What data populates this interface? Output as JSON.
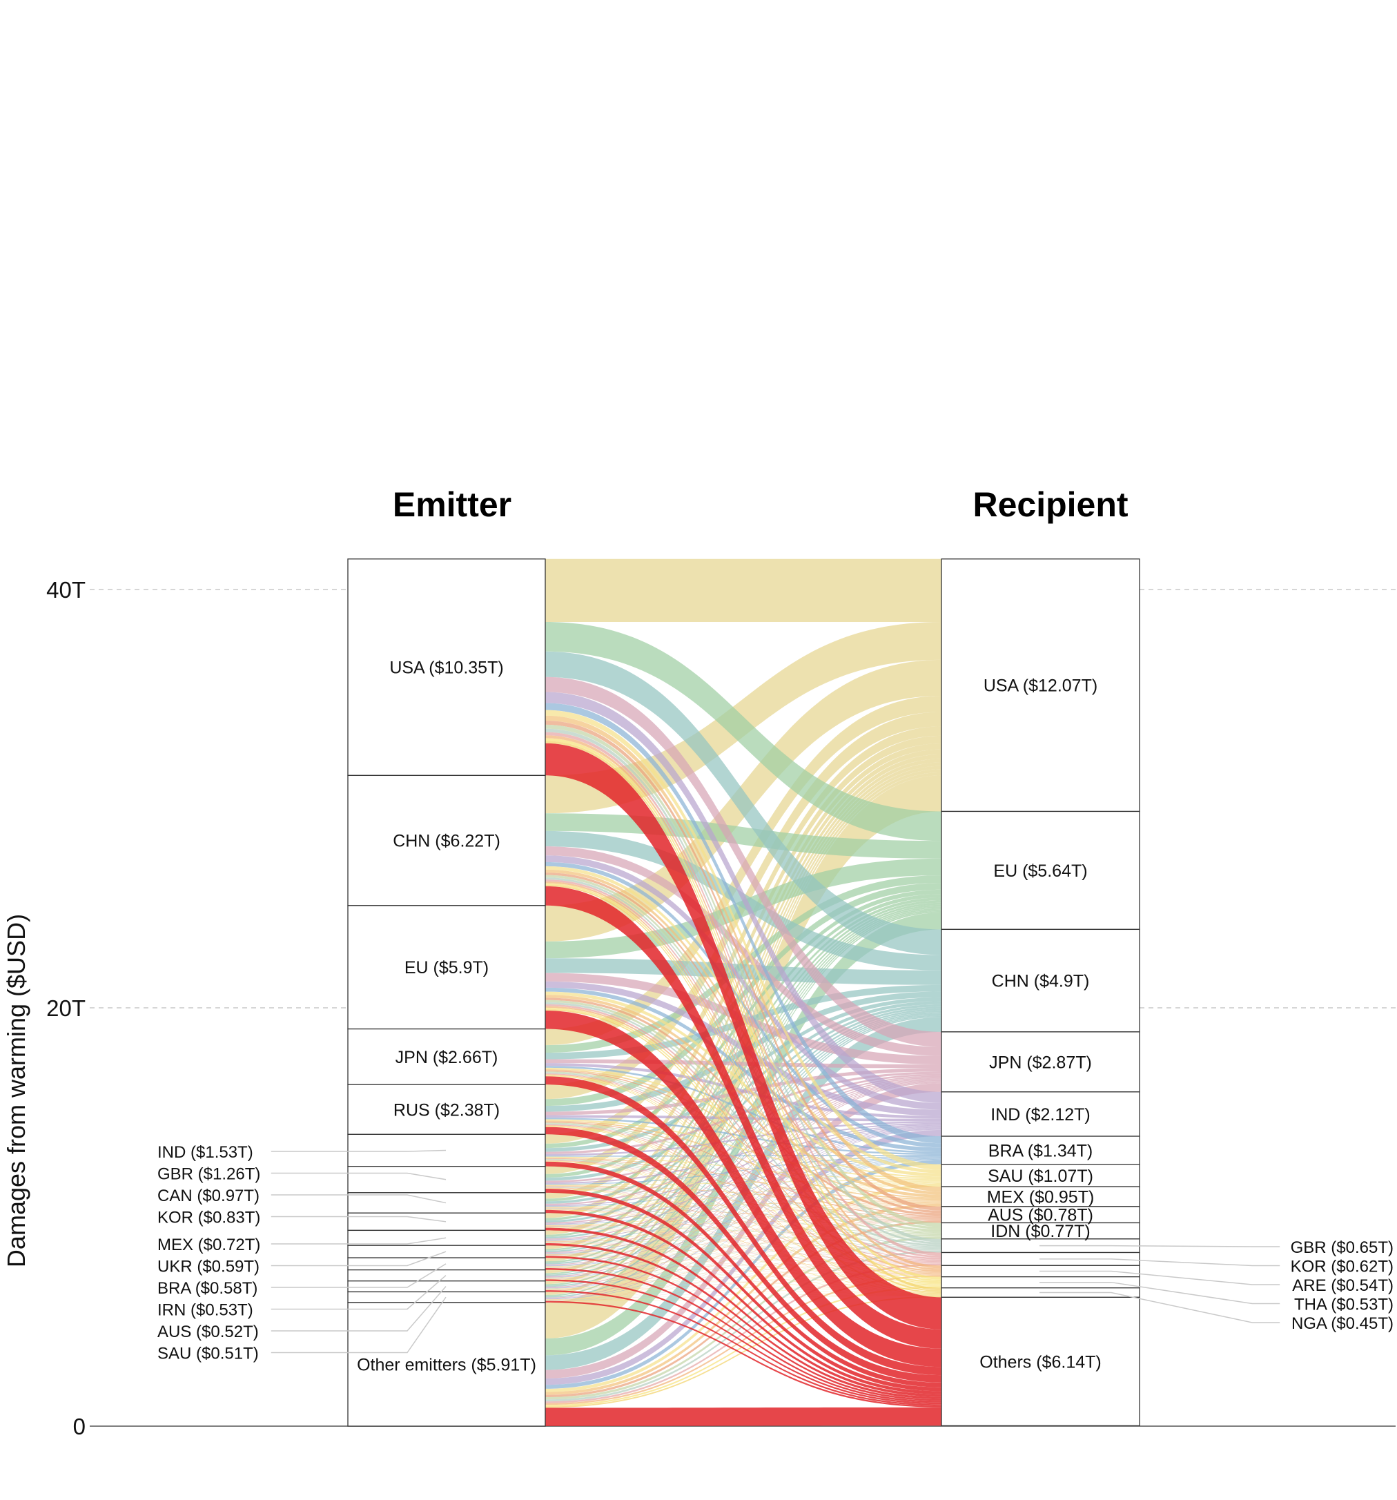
{
  "chart_data": {
    "type": "sankey",
    "title": "",
    "ylabel": "Damages from warming ($USD)",
    "yticks": [
      "0",
      "20T",
      "40T"
    ],
    "ylim": [
      0,
      41.5
    ],
    "grid": "dashed horizontal at 20T and 40T",
    "headers": {
      "left": "Emitter",
      "right": "Recipient"
    },
    "emitters": [
      {
        "code": "USA",
        "value": 10.35,
        "label": "USA ($10.35T)",
        "color": "#e8d48b"
      },
      {
        "code": "CHN",
        "value": 6.22,
        "label": "CHN ($6.22T)",
        "color": "#e8d48b"
      },
      {
        "code": "EU",
        "value": 5.9,
        "label": "EU ($5.9T)",
        "color": "#e8d48b"
      },
      {
        "code": "JPN",
        "value": 2.66,
        "label": "JPN ($2.66T)",
        "color": "#e8d48b"
      },
      {
        "code": "RUS",
        "value": 2.38,
        "label": "RUS ($2.38T)",
        "color": "#e8d48b"
      },
      {
        "code": "IND",
        "value": 1.53,
        "label": "IND ($1.53T)",
        "color": "#e8d48b"
      },
      {
        "code": "GBR",
        "value": 1.26,
        "label": "GBR ($1.26T)",
        "color": "#e8d48b"
      },
      {
        "code": "CAN",
        "value": 0.97,
        "label": "CAN ($0.97T)",
        "color": "#e8d48b"
      },
      {
        "code": "KOR",
        "value": 0.83,
        "label": "KOR ($0.83T)",
        "color": "#e8d48b"
      },
      {
        "code": "MEX",
        "value": 0.72,
        "label": "MEX ($0.72T)",
        "color": "#e8d48b"
      },
      {
        "code": "UKR",
        "value": 0.59,
        "label": "UKR ($0.59T)",
        "color": "#e8d48b"
      },
      {
        "code": "BRA",
        "value": 0.58,
        "label": "BRA ($0.58T)",
        "color": "#e8d48b"
      },
      {
        "code": "IRN",
        "value": 0.53,
        "label": "IRN ($0.53T)",
        "color": "#e8d48b"
      },
      {
        "code": "AUS",
        "value": 0.52,
        "label": "AUS ($0.52T)",
        "color": "#e8d48b"
      },
      {
        "code": "SAU",
        "value": 0.51,
        "label": "SAU ($0.51T)",
        "color": "#e8d48b"
      },
      {
        "code": "Other",
        "value": 5.91,
        "label": "Other emitters ($5.91T)",
        "color": "#e8d48b"
      }
    ],
    "recipients": [
      {
        "code": "USA",
        "value": 12.07,
        "label": "USA ($12.07T)",
        "color": "#e6d590"
      },
      {
        "code": "EU",
        "value": 5.64,
        "label": "EU ($5.64T)",
        "color": "#9fcfa4"
      },
      {
        "code": "CHN",
        "value": 4.9,
        "label": "CHN ($4.9T)",
        "color": "#94c5c0"
      },
      {
        "code": "JPN",
        "value": 2.87,
        "label": "JPN ($2.87T)",
        "color": "#d7a5b5"
      },
      {
        "code": "IND",
        "value": 2.12,
        "label": "IND ($2.12T)",
        "color": "#b8a5cf"
      },
      {
        "code": "BRA",
        "value": 1.34,
        "label": "BRA ($1.34T)",
        "color": "#8ab3d6"
      },
      {
        "code": "SAU",
        "value": 1.07,
        "label": "SAU ($1.07T)",
        "color": "#f5e08a"
      },
      {
        "code": "MEX",
        "value": 0.95,
        "label": "MEX ($0.95T)",
        "color": "#f2c27c"
      },
      {
        "code": "AUS",
        "value": 0.78,
        "label": "AUS ($0.78T)",
        "color": "#eaa27c"
      },
      {
        "code": "IDN",
        "value": 0.77,
        "label": "IDN ($0.77T)",
        "color": "#c3d6a8"
      },
      {
        "code": "GBR",
        "value": 0.65,
        "label": "GBR ($0.65T)",
        "color": "#b5cfc0"
      },
      {
        "code": "KOR",
        "value": 0.62,
        "label": "KOR ($0.62T)",
        "color": "#e6a6a6"
      },
      {
        "code": "ARE",
        "value": 0.54,
        "label": "ARE ($0.54T)",
        "color": "#f3b377"
      },
      {
        "code": "THA",
        "value": 0.53,
        "label": "THA ($0.53T)",
        "color": "#f6e27a"
      },
      {
        "code": "NGA",
        "value": 0.45,
        "label": "NGA ($0.45T)",
        "color": "#f2d36a"
      },
      {
        "code": "Others",
        "value": 6.14,
        "label": "Others ($6.14T)",
        "color": "#e2262a"
      }
    ]
  }
}
